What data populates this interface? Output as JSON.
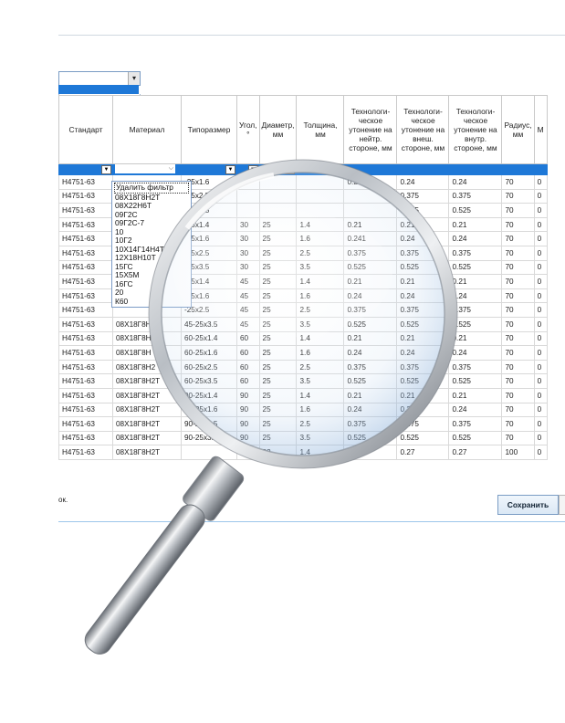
{
  "table": {
    "headers": [
      "Стандарт",
      "Материал",
      "Типоразмер",
      "Угол, °",
      "Диаметр, мм",
      "Толщина, мм",
      "Технологи-ческое утонение на нейтр. стороне, мм",
      "Технологи-ческое утонение на внеш. стороне, мм",
      "Технологи-ческое утонение на внутр. стороне, мм",
      "Радиус, мм",
      "М"
    ],
    "rows": [
      [
        "Н4751-63",
        "",
        "-25x1.6",
        "15",
        "",
        "",
        "0.24",
        "0.24",
        "0.24",
        "70",
        "0"
      ],
      [
        "Н4751-63",
        "",
        "-25x2.5",
        "",
        "",
        "",
        "",
        "0.375",
        "0.375",
        "70",
        "0"
      ],
      [
        "Н4751-63",
        "",
        "-25x3.5",
        "",
        "",
        "",
        "",
        "0.525",
        "0.525",
        "70",
        "0"
      ],
      [
        "Н4751-63",
        "",
        "-25x1.4",
        "30",
        "25",
        "1.4",
        "0.21",
        "0.21",
        "0.21",
        "70",
        "0"
      ],
      [
        "Н4751-63",
        "",
        "-25x1.6",
        "30",
        "25",
        "1.6",
        "0.241",
        "0.24",
        "0.24",
        "70",
        "0"
      ],
      [
        "Н4751-63",
        "",
        "-25x2.5",
        "30",
        "25",
        "2.5",
        "0.375",
        "0.375",
        "0.375",
        "70",
        "0"
      ],
      [
        "Н4751-63",
        "",
        "-25x3.5",
        "30",
        "25",
        "3.5",
        "0.525",
        "0.525",
        "0.525",
        "70",
        "0"
      ],
      [
        "Н4751-63",
        "",
        "-25x1.4",
        "45",
        "25",
        "1.4",
        "0.21",
        "0.21",
        "0.21",
        "70",
        "0"
      ],
      [
        "Н4751-63",
        "",
        "-25x1.6",
        "45",
        "25",
        "1.6",
        "0.24",
        "0.24",
        "0.24",
        "70",
        "0"
      ],
      [
        "Н4751-63",
        "",
        "-25x2.5",
        "45",
        "25",
        "2.5",
        "0.375",
        "0.375",
        "0.375",
        "70",
        "0"
      ],
      [
        "Н4751-63",
        "08Х18Г8Н",
        "45-25x3.5",
        "45",
        "25",
        "3.5",
        "0.525",
        "0.525",
        "0.525",
        "70",
        "0"
      ],
      [
        "Н4751-63",
        "08Х18Г8Н",
        "60-25x1.4",
        "60",
        "25",
        "1.4",
        "0.21",
        "0.21",
        "0.21",
        "70",
        "0"
      ],
      [
        "Н4751-63",
        "08Х18Г8Н",
        "60-25x1.6",
        "60",
        "25",
        "1.6",
        "0.24",
        "0.24",
        "0.24",
        "70",
        "0"
      ],
      [
        "Н4751-63",
        "08Х18Г8Н2",
        "60-25x2.5",
        "60",
        "25",
        "2.5",
        "0.375",
        "0.375",
        "0.375",
        "70",
        "0"
      ],
      [
        "Н4751-63",
        "08Х18Г8Н2Т",
        "60-25x3.5",
        "60",
        "25",
        "3.5",
        "0.525",
        "0.525",
        "0.525",
        "70",
        "0"
      ],
      [
        "Н4751-63",
        "08Х18Г8Н2Т",
        "90-25x1.4",
        "90",
        "25",
        "1.4",
        "0.21",
        "0.21",
        "0.21",
        "70",
        "0"
      ],
      [
        "Н4751-63",
        "08Х18Г8Н2Т",
        "90-25x1.6",
        "90",
        "25",
        "1.6",
        "0.24",
        "0.24",
        "0.24",
        "70",
        "0"
      ],
      [
        "Н4751-63",
        "08Х18Г8Н2Т",
        "90-25x2.5",
        "90",
        "25",
        "2.5",
        "0.375",
        "0.375",
        "0.375",
        "70",
        "0"
      ],
      [
        "Н4751-63",
        "08Х18Г8Н2Т",
        "90-25x3.5",
        "90",
        "25",
        "3.5",
        "0.525",
        "0.525",
        "0.525",
        "70",
        "0"
      ],
      [
        "Н4751-63",
        "08Х18Г8Н2Т",
        "",
        "",
        "32",
        "1.4",
        "",
        "0.27",
        "0.27",
        "100",
        "0"
      ]
    ]
  },
  "material_filter": {
    "options": [
      "Удалить фильтр",
      "08Х18Г8Н2Т",
      "08Х22Н6Т",
      "09Г2С",
      "09Г2С-7",
      "10",
      "10Г2",
      "10Х14Г14Н4Т",
      "12Х18Н10Т",
      "15ГС",
      "15Х5М",
      "16ГС",
      "20",
      "К60"
    ]
  },
  "status_text": "ок.",
  "save_label": "Сохранить",
  "accent_color": "#1e78d7"
}
